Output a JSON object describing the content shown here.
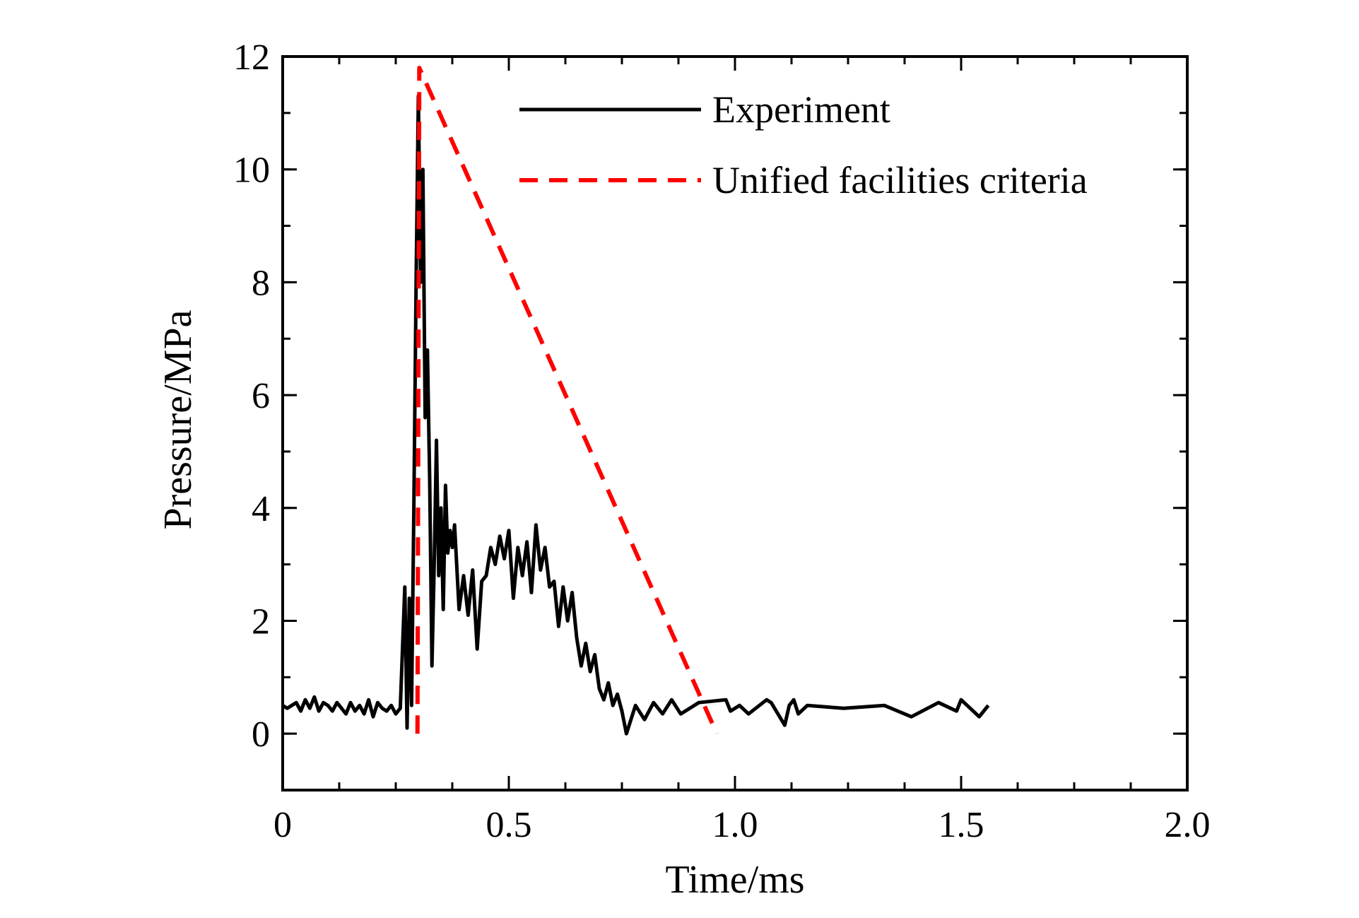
{
  "chart_data": {
    "type": "line",
    "xlabel": "Time/ms",
    "ylabel": "Pressure/MPa",
    "xlim": [
      0,
      2.0
    ],
    "ylim": [
      -1,
      12
    ],
    "x_ticks": [
      "0",
      "0.5",
      "1.0",
      "1.5",
      "2.0"
    ],
    "x_tick_values": [
      0,
      0.5,
      1.0,
      1.5,
      2.0
    ],
    "y_ticks": [
      "0",
      "2",
      "4",
      "6",
      "8",
      "10",
      "12"
    ],
    "y_tick_values": [
      0,
      2,
      4,
      6,
      8,
      10,
      12
    ],
    "x_minor_step": 0.125,
    "y_minor_step": 1,
    "grid": false,
    "legend_position": "top-right",
    "series": [
      {
        "name": "Experiment",
        "color": "#000000",
        "style": "solid",
        "x": [
          0.0,
          0.01,
          0.02,
          0.03,
          0.04,
          0.05,
          0.06,
          0.07,
          0.08,
          0.09,
          0.1,
          0.11,
          0.12,
          0.13,
          0.14,
          0.15,
          0.16,
          0.17,
          0.18,
          0.19,
          0.2,
          0.21,
          0.22,
          0.23,
          0.24,
          0.25,
          0.26,
          0.27,
          0.275,
          0.28,
          0.285,
          0.29,
          0.295,
          0.3,
          0.305,
          0.31,
          0.315,
          0.32,
          0.325,
          0.33,
          0.335,
          0.34,
          0.345,
          0.35,
          0.355,
          0.36,
          0.365,
          0.37,
          0.375,
          0.38,
          0.39,
          0.4,
          0.41,
          0.42,
          0.43,
          0.44,
          0.45,
          0.46,
          0.47,
          0.48,
          0.49,
          0.5,
          0.51,
          0.52,
          0.53,
          0.54,
          0.55,
          0.56,
          0.57,
          0.58,
          0.59,
          0.6,
          0.61,
          0.62,
          0.63,
          0.64,
          0.65,
          0.66,
          0.67,
          0.68,
          0.69,
          0.7,
          0.71,
          0.72,
          0.73,
          0.74,
          0.75,
          0.76,
          0.78,
          0.8,
          0.82,
          0.84,
          0.86,
          0.88,
          0.92,
          0.98,
          0.99,
          1.01,
          1.03,
          1.07,
          1.08,
          1.11,
          1.12,
          1.13,
          1.14,
          1.16,
          1.24,
          1.33,
          1.39,
          1.45,
          1.49,
          1.5,
          1.54,
          1.56
        ],
        "y": [
          0.5,
          0.45,
          0.5,
          0.55,
          0.4,
          0.6,
          0.45,
          0.65,
          0.4,
          0.55,
          0.5,
          0.4,
          0.55,
          0.45,
          0.35,
          0.55,
          0.4,
          0.5,
          0.35,
          0.6,
          0.3,
          0.55,
          0.45,
          0.4,
          0.5,
          0.35,
          0.45,
          2.6,
          0.1,
          2.4,
          0.5,
          4.0,
          8.0,
          11.3,
          8.0,
          10.0,
          5.6,
          6.8,
          4.5,
          1.2,
          3.0,
          5.2,
          2.8,
          4.0,
          2.2,
          4.4,
          3.2,
          3.6,
          3.3,
          3.7,
          2.2,
          2.8,
          2.1,
          2.9,
          1.5,
          2.7,
          2.8,
          3.3,
          3.0,
          3.5,
          3.1,
          3.6,
          2.4,
          3.3,
          2.8,
          3.4,
          2.5,
          3.7,
          2.9,
          3.3,
          2.6,
          2.7,
          1.9,
          2.6,
          2.0,
          2.5,
          1.7,
          1.2,
          1.6,
          1.1,
          1.4,
          0.8,
          0.6,
          0.9,
          0.5,
          0.7,
          0.4,
          0.0,
          0.5,
          0.25,
          0.55,
          0.35,
          0.6,
          0.35,
          0.55,
          0.6,
          0.4,
          0.5,
          0.35,
          0.6,
          0.55,
          0.15,
          0.5,
          0.6,
          0.35,
          0.5,
          0.45,
          0.5,
          0.3,
          0.55,
          0.4,
          0.6,
          0.3,
          0.5
        ]
      },
      {
        "name": "Unified facilities criteria",
        "color": "#ff0000",
        "style": "dashed",
        "x": [
          0.298,
          0.302,
          0.96
        ],
        "y": [
          0.0,
          11.8,
          0.0
        ]
      }
    ]
  }
}
